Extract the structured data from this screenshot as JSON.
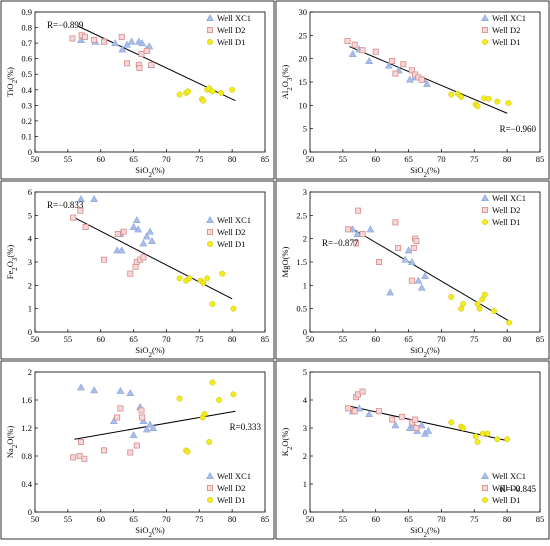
{
  "markers": {
    "xc1": {
      "fill": "#a9bde8",
      "stroke": "#8aa6dd"
    },
    "d2": {
      "fill": "#f7d8d8",
      "stroke": "#d98b8b"
    },
    "d1": {
      "fill": "#f2ec1a",
      "stroke": "#c9c010"
    }
  },
  "chart_data": [
    {
      "type": "scatter",
      "xlabel": "SiO2(%)",
      "ylabel": "TiO2(%)",
      "xlim": [
        50,
        85
      ],
      "ylim": [
        0,
        0.9
      ],
      "r_label": "R=−0.899",
      "r_pos": "top-left",
      "legend": "top-right",
      "grid": false,
      "xticks": [
        "50",
        "55",
        "60",
        "65",
        "70",
        "75",
        "80",
        "85"
      ],
      "yticks": [
        "0",
        "0.1",
        "0.2",
        "0.3",
        "0.4",
        "0.5",
        "0.6",
        "0.7",
        "0.8",
        "0.9"
      ],
      "trend": [
        [
          56.5,
          0.81
        ],
        [
          80.5,
          0.33
        ]
      ],
      "series": [
        {
          "name": "Well XC1",
          "points": [
            [
              57.0,
              0.72
            ],
            [
              59.2,
              0.71
            ],
            [
              60.5,
              0.71
            ],
            [
              62.2,
              0.7
            ],
            [
              63.3,
              0.66
            ],
            [
              64.0,
              0.69
            ],
            [
              64.7,
              0.71
            ],
            [
              65.8,
              0.71
            ],
            [
              66.3,
              0.7
            ],
            [
              67.0,
              0.66
            ],
            [
              67.4,
              0.68
            ],
            [
              67.7,
              0.56
            ]
          ]
        },
        {
          "name": "Well D2",
          "points": [
            [
              55.7,
              0.73
            ],
            [
              57.1,
              0.75
            ],
            [
              57.6,
              0.74
            ],
            [
              59.0,
              0.72
            ],
            [
              60.5,
              0.71
            ],
            [
              63.2,
              0.74
            ],
            [
              64.0,
              0.57
            ],
            [
              65.8,
              0.56
            ],
            [
              65.9,
              0.54
            ],
            [
              66.2,
              0.63
            ],
            [
              67.0,
              0.65
            ],
            [
              67.7,
              0.56
            ]
          ]
        },
        {
          "name": "Well D1",
          "points": [
            [
              72.0,
              0.37
            ],
            [
              73.0,
              0.38
            ],
            [
              73.3,
              0.39
            ],
            [
              75.4,
              0.34
            ],
            [
              75.6,
              0.33
            ],
            [
              76.2,
              0.4
            ],
            [
              76.5,
              0.41
            ],
            [
              77.0,
              0.39
            ],
            [
              78.3,
              0.38
            ],
            [
              80.0,
              0.4
            ]
          ]
        }
      ]
    },
    {
      "type": "scatter",
      "xlabel": "SiO2(%)",
      "ylabel": "Al2O3(%)",
      "xlim": [
        50,
        85
      ],
      "ylim": [
        0,
        30
      ],
      "r_label": "R=−0.960",
      "r_pos": "bottom-right",
      "legend": "top-right",
      "grid": false,
      "xticks": [
        "50",
        "55",
        "60",
        "65",
        "70",
        "75",
        "80",
        "85"
      ],
      "yticks": [
        "0",
        "5",
        "10",
        "15",
        "20",
        "25",
        "30"
      ],
      "trend": [
        [
          56.0,
          22.6
        ],
        [
          80.0,
          8.3
        ]
      ],
      "series": [
        {
          "name": "Well XC1",
          "points": [
            [
              56.5,
              21.0
            ],
            [
              57.5,
              22.0
            ],
            [
              59.0,
              19.5
            ],
            [
              62.0,
              18.5
            ],
            [
              63.5,
              17.5
            ],
            [
              65.2,
              15.5
            ],
            [
              66.0,
              16.0
            ],
            [
              67.2,
              15.5
            ],
            [
              67.8,
              14.6
            ]
          ]
        },
        {
          "name": "Well D2",
          "points": [
            [
              55.7,
              23.8
            ],
            [
              56.8,
              23.0
            ],
            [
              58.0,
              21.8
            ],
            [
              60.0,
              21.5
            ],
            [
              62.5,
              19.5
            ],
            [
              63.0,
              16.8
            ],
            [
              64.2,
              18.8
            ],
            [
              65.5,
              17.5
            ],
            [
              66.0,
              16.6
            ],
            [
              66.5,
              16.0
            ],
            [
              67.0,
              15.5
            ]
          ]
        },
        {
          "name": "Well D1",
          "points": [
            [
              71.5,
              12.3
            ],
            [
              72.5,
              12.5
            ],
            [
              73.0,
              11.8
            ],
            [
              75.2,
              10.2
            ],
            [
              75.5,
              9.8
            ],
            [
              76.5,
              11.5
            ],
            [
              77.2,
              11.4
            ],
            [
              78.5,
              10.8
            ],
            [
              80.2,
              10.5
            ]
          ]
        }
      ]
    },
    {
      "type": "scatter",
      "xlabel": "SiO2(%)",
      "ylabel": "Fe2O3(%)",
      "xlim": [
        50,
        85
      ],
      "ylim": [
        0,
        6
      ],
      "r_label": "R=−0.833",
      "r_pos": "top-left",
      "legend": "right",
      "grid": false,
      "xticks": [
        "50",
        "55",
        "60",
        "65",
        "70",
        "75",
        "80",
        "85"
      ],
      "yticks": [
        "0",
        "1",
        "2",
        "3",
        "4",
        "5",
        "6"
      ],
      "trend": [
        [
          56.0,
          4.9
        ],
        [
          80.0,
          1.42
        ]
      ],
      "series": [
        {
          "name": "Well XC1",
          "points": [
            [
              57.0,
              5.7
            ],
            [
              59.0,
              5.7
            ],
            [
              62.5,
              3.5
            ],
            [
              63.0,
              4.2
            ],
            [
              63.2,
              3.5
            ],
            [
              65.0,
              4.5
            ],
            [
              65.5,
              4.8
            ],
            [
              65.7,
              4.4
            ],
            [
              66.5,
              3.8
            ],
            [
              67.0,
              4.1
            ],
            [
              67.5,
              4.3
            ],
            [
              67.8,
              3.9
            ]
          ]
        },
        {
          "name": "Well D2",
          "points": [
            [
              55.8,
              4.9
            ],
            [
              56.9,
              5.2
            ],
            [
              57.7,
              4.5
            ],
            [
              60.5,
              3.1
            ],
            [
              62.6,
              4.2
            ],
            [
              63.5,
              4.3
            ],
            [
              64.5,
              2.5
            ],
            [
              65.3,
              2.8
            ],
            [
              65.5,
              3.0
            ],
            [
              66.0,
              3.1
            ],
            [
              66.5,
              3.2
            ]
          ]
        },
        {
          "name": "Well D1",
          "points": [
            [
              72.0,
              2.3
            ],
            [
              73.0,
              2.2
            ],
            [
              73.5,
              2.3
            ],
            [
              75.2,
              2.2
            ],
            [
              75.6,
              2.1
            ],
            [
              76.2,
              2.3
            ],
            [
              77.0,
              1.2
            ],
            [
              78.5,
              2.5
            ],
            [
              80.2,
              1.0
            ]
          ]
        }
      ]
    },
    {
      "type": "scatter",
      "xlabel": "SiO2(%)",
      "ylabel": "MgO(%)",
      "xlim": [
        50,
        85
      ],
      "ylim": [
        0,
        3
      ],
      "r_label": "R=−0.877",
      "r_pos": "top-left",
      "legend": "top-right",
      "grid": false,
      "xticks": [
        "50",
        "55",
        "60",
        "65",
        "70",
        "75",
        "80",
        "85"
      ],
      "yticks": [
        "0",
        "0.5",
        "1",
        "1.5",
        "2",
        "2.5",
        "3"
      ],
      "trend": [
        [
          56.0,
          2.25
        ],
        [
          80.5,
          0.22
        ]
      ],
      "series": [
        {
          "name": "Well XC1",
          "points": [
            [
              56.5,
              2.2
            ],
            [
              57.2,
              2.1
            ],
            [
              59.2,
              2.2
            ],
            [
              62.2,
              0.85
            ],
            [
              64.5,
              1.55
            ],
            [
              65.0,
              1.75
            ],
            [
              65.5,
              1.5
            ],
            [
              66.5,
              1.1
            ],
            [
              67.0,
              0.95
            ],
            [
              67.5,
              1.2
            ]
          ]
        },
        {
          "name": "Well D2",
          "points": [
            [
              55.8,
              2.2
            ],
            [
              57.0,
              1.9
            ],
            [
              57.3,
              2.6
            ],
            [
              58.0,
              2.1
            ],
            [
              60.5,
              1.5
            ],
            [
              63.0,
              2.35
            ],
            [
              63.4,
              1.8
            ],
            [
              65.5,
              1.1
            ],
            [
              65.8,
              1.8
            ],
            [
              66.0,
              2.0
            ],
            [
              66.2,
              1.95
            ]
          ]
        },
        {
          "name": "Well D1",
          "points": [
            [
              71.5,
              0.75
            ],
            [
              73.0,
              0.5
            ],
            [
              73.3,
              0.6
            ],
            [
              75.5,
              0.6
            ],
            [
              75.8,
              0.5
            ],
            [
              76.2,
              0.7
            ],
            [
              76.6,
              0.8
            ],
            [
              78.0,
              0.45
            ],
            [
              80.3,
              0.2
            ]
          ]
        }
      ]
    },
    {
      "type": "scatter",
      "xlabel": "SiO2(%)",
      "ylabel": "Na2O(%)",
      "xlim": [
        50,
        85
      ],
      "ylim": [
        0,
        2
      ],
      "r_label": "R=0.333",
      "r_pos": "right",
      "legend": "bottom-right",
      "grid": false,
      "xticks": [
        "50",
        "55",
        "60",
        "65",
        "70",
        "75",
        "80",
        "85"
      ],
      "yticks": [
        "0",
        "0.4",
        "0.8",
        "1.2",
        "1.6",
        "2"
      ],
      "trend": [
        [
          56.0,
          1.04
        ],
        [
          80.5,
          1.44
        ]
      ],
      "series": [
        {
          "name": "Well XC1",
          "points": [
            [
              57.0,
              1.78
            ],
            [
              59.0,
              1.74
            ],
            [
              62.0,
              1.3
            ],
            [
              63.0,
              1.73
            ],
            [
              64.5,
              1.7
            ],
            [
              65.0,
              1.1
            ],
            [
              66.0,
              1.5
            ],
            [
              66.5,
              1.3
            ],
            [
              67.0,
              1.18
            ],
            [
              67.5,
              1.25
            ],
            [
              68.0,
              1.2
            ]
          ]
        },
        {
          "name": "Well D2",
          "points": [
            [
              55.8,
              0.78
            ],
            [
              56.8,
              0.8
            ],
            [
              57.0,
              1.0
            ],
            [
              57.5,
              0.76
            ],
            [
              60.5,
              0.88
            ],
            [
              62.5,
              1.35
            ],
            [
              63.0,
              1.48
            ],
            [
              64.5,
              0.85
            ],
            [
              65.5,
              0.95
            ],
            [
              66.2,
              1.45
            ],
            [
              66.3,
              1.35
            ]
          ]
        },
        {
          "name": "Well D1",
          "points": [
            [
              72.0,
              1.62
            ],
            [
              73.0,
              0.88
            ],
            [
              73.2,
              0.86
            ],
            [
              75.5,
              1.35
            ],
            [
              75.8,
              1.4
            ],
            [
              76.5,
              1.0
            ],
            [
              77.0,
              1.85
            ],
            [
              78.0,
              1.6
            ],
            [
              80.2,
              1.68
            ]
          ]
        }
      ]
    },
    {
      "type": "scatter",
      "xlabel": "SiO2(%)",
      "ylabel": "K2O(%)",
      "xlim": [
        50,
        85
      ],
      "ylim": [
        0,
        5
      ],
      "r_label": "R=−0.845",
      "r_pos": "bottom-right",
      "legend": "bottom-right",
      "grid": false,
      "xticks": [
        "50",
        "55",
        "60",
        "65",
        "70",
        "75",
        "80",
        "85"
      ],
      "yticks": [
        "0",
        "1",
        "2",
        "3",
        "4",
        "5"
      ],
      "trend": [
        [
          56.0,
          3.78
        ],
        [
          80.0,
          2.55
        ]
      ],
      "series": [
        {
          "name": "Well XC1",
          "points": [
            [
              56.5,
              3.6
            ],
            [
              57.5,
              3.7
            ],
            [
              59.0,
              3.5
            ],
            [
              63.0,
              3.1
            ],
            [
              65.2,
              3.0
            ],
            [
              65.8,
              3.1
            ],
            [
              66.3,
              2.9
            ],
            [
              67.0,
              3.1
            ],
            [
              67.5,
              2.8
            ],
            [
              68.0,
              2.9
            ]
          ]
        },
        {
          "name": "Well D2",
          "points": [
            [
              55.8,
              3.7
            ],
            [
              56.8,
              3.6
            ],
            [
              57.0,
              4.1
            ],
            [
              57.3,
              4.2
            ],
            [
              58.0,
              4.3
            ],
            [
              60.5,
              3.6
            ],
            [
              62.5,
              3.3
            ],
            [
              64.0,
              3.4
            ],
            [
              65.5,
              3.2
            ],
            [
              66.0,
              3.3
            ],
            [
              66.2,
              3.0
            ]
          ]
        },
        {
          "name": "Well D1",
          "points": [
            [
              71.5,
              3.2
            ],
            [
              73.0,
              3.05
            ],
            [
              73.3,
              3.0
            ],
            [
              75.2,
              2.7
            ],
            [
              75.5,
              2.5
            ],
            [
              76.3,
              2.8
            ],
            [
              77.0,
              2.8
            ],
            [
              78.5,
              2.6
            ],
            [
              80.0,
              2.6
            ]
          ]
        }
      ]
    }
  ]
}
